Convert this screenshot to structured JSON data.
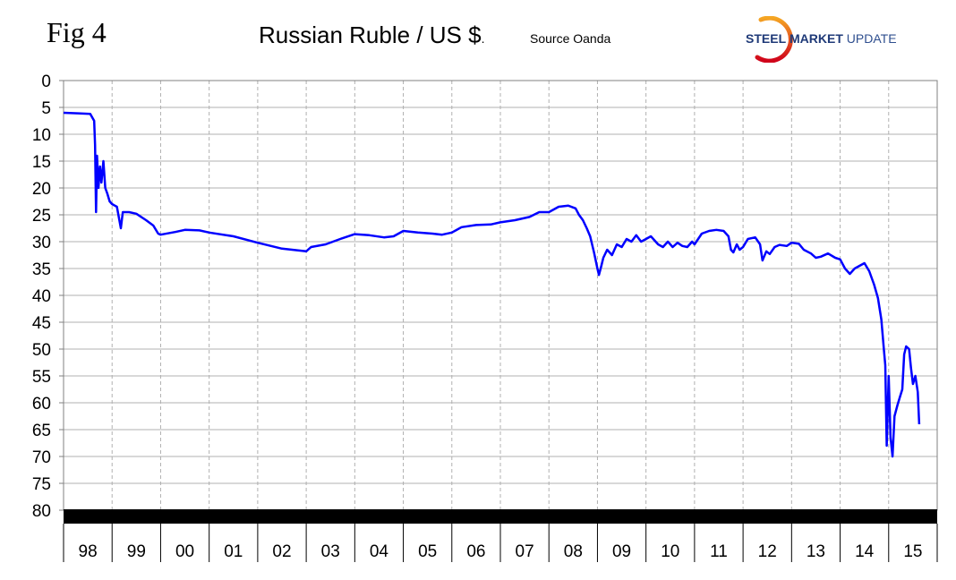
{
  "header": {
    "fig_label": "Fig 4",
    "title": "Russian Ruble / US $",
    "title_suffix": ".",
    "source": "Source Oanda"
  },
  "logo": {
    "word1": "STEEL",
    "word2": "MARKET",
    "word3": "UPDATE",
    "colors": {
      "text": "#1f3a78",
      "arc_start": "#f5a623",
      "arc_end": "#d0021b"
    }
  },
  "colors": {
    "line": "#0000ff",
    "axis_band": "#000000",
    "grid": "#b0b0b0"
  },
  "chart_data": {
    "type": "line",
    "title": "Russian Ruble / US $",
    "xlabel": "",
    "ylabel": "",
    "y_axis_inverted": true,
    "ylim": [
      0,
      80
    ],
    "y_ticks": [
      0,
      5,
      10,
      15,
      20,
      25,
      30,
      35,
      40,
      45,
      50,
      55,
      60,
      65,
      70,
      75,
      80
    ],
    "categories": [
      "98",
      "99",
      "00",
      "01",
      "02",
      "03",
      "04",
      "05",
      "06",
      "07",
      "08",
      "09",
      "10",
      "11",
      "12",
      "13",
      "14",
      "15"
    ],
    "grid": {
      "vertical": "dashed",
      "horizontal": "solid"
    },
    "series": [
      {
        "points": [
          [
            1998.0,
            6.0
          ],
          [
            1998.3,
            6.1
          ],
          [
            1998.55,
            6.2
          ],
          [
            1998.63,
            7.5
          ],
          [
            1998.65,
            12
          ],
          [
            1998.67,
            24.5
          ],
          [
            1998.69,
            14
          ],
          [
            1998.72,
            20
          ],
          [
            1998.75,
            16
          ],
          [
            1998.78,
            19
          ],
          [
            1998.82,
            15
          ],
          [
            1998.86,
            20
          ],
          [
            1998.9,
            21
          ],
          [
            1998.95,
            22.5
          ],
          [
            1999.0,
            23
          ],
          [
            1999.1,
            23.5
          ],
          [
            1999.18,
            27.5
          ],
          [
            1999.22,
            24.5
          ],
          [
            1999.35,
            24.5
          ],
          [
            1999.5,
            24.8
          ],
          [
            1999.7,
            26
          ],
          [
            1999.85,
            27
          ],
          [
            1999.95,
            28.5
          ],
          [
            2000.0,
            28.7
          ],
          [
            2000.3,
            28.2
          ],
          [
            2000.5,
            27.8
          ],
          [
            2000.8,
            27.9
          ],
          [
            2001.0,
            28.3
          ],
          [
            2001.5,
            29.0
          ],
          [
            2002.0,
            30.2
          ],
          [
            2002.5,
            31.3
          ],
          [
            2003.0,
            31.8
          ],
          [
            2003.1,
            31.0
          ],
          [
            2003.4,
            30.5
          ],
          [
            2003.7,
            29.5
          ],
          [
            2004.0,
            28.6
          ],
          [
            2004.3,
            28.8
          ],
          [
            2004.6,
            29.2
          ],
          [
            2004.8,
            29.0
          ],
          [
            2005.0,
            28.0
          ],
          [
            2005.3,
            28.3
          ],
          [
            2005.6,
            28.5
          ],
          [
            2005.8,
            28.7
          ],
          [
            2006.0,
            28.3
          ],
          [
            2006.2,
            27.3
          ],
          [
            2006.5,
            26.9
          ],
          [
            2006.8,
            26.8
          ],
          [
            2007.0,
            26.4
          ],
          [
            2007.3,
            26.0
          ],
          [
            2007.6,
            25.4
          ],
          [
            2007.8,
            24.5
          ],
          [
            2008.0,
            24.5
          ],
          [
            2008.2,
            23.5
          ],
          [
            2008.4,
            23.3
          ],
          [
            2008.55,
            23.8
          ],
          [
            2008.62,
            25.0
          ],
          [
            2008.7,
            26.0
          ],
          [
            2008.78,
            27.5
          ],
          [
            2008.85,
            29.0
          ],
          [
            2008.93,
            32.0
          ],
          [
            2009.0,
            35.0
          ],
          [
            2009.03,
            36.2
          ],
          [
            2009.08,
            34.5
          ],
          [
            2009.12,
            33.0
          ],
          [
            2009.2,
            31.5
          ],
          [
            2009.3,
            32.5
          ],
          [
            2009.4,
            30.5
          ],
          [
            2009.5,
            31.0
          ],
          [
            2009.6,
            29.5
          ],
          [
            2009.7,
            30.0
          ],
          [
            2009.8,
            28.8
          ],
          [
            2009.9,
            30.0
          ],
          [
            2010.0,
            29.5
          ],
          [
            2010.1,
            29.0
          ],
          [
            2010.25,
            30.5
          ],
          [
            2010.35,
            31.0
          ],
          [
            2010.45,
            30.0
          ],
          [
            2010.55,
            31.0
          ],
          [
            2010.65,
            30.2
          ],
          [
            2010.75,
            30.8
          ],
          [
            2010.85,
            31.0
          ],
          [
            2010.95,
            30.0
          ],
          [
            2011.0,
            30.5
          ],
          [
            2011.15,
            28.5
          ],
          [
            2011.3,
            28.0
          ],
          [
            2011.45,
            27.8
          ],
          [
            2011.6,
            28.0
          ],
          [
            2011.7,
            29.0
          ],
          [
            2011.75,
            31.5
          ],
          [
            2011.8,
            32.0
          ],
          [
            2011.87,
            30.5
          ],
          [
            2011.93,
            31.5
          ],
          [
            2012.0,
            31.0
          ],
          [
            2012.1,
            29.5
          ],
          [
            2012.25,
            29.2
          ],
          [
            2012.35,
            30.5
          ],
          [
            2012.4,
            33.5
          ],
          [
            2012.48,
            31.8
          ],
          [
            2012.55,
            32.3
          ],
          [
            2012.65,
            31.0
          ],
          [
            2012.75,
            30.6
          ],
          [
            2012.9,
            30.8
          ],
          [
            2013.0,
            30.2
          ],
          [
            2013.15,
            30.4
          ],
          [
            2013.25,
            31.5
          ],
          [
            2013.4,
            32.2
          ],
          [
            2013.5,
            33.0
          ],
          [
            2013.6,
            32.8
          ],
          [
            2013.75,
            32.2
          ],
          [
            2013.9,
            33.0
          ],
          [
            2014.0,
            33.3
          ],
          [
            2014.1,
            35.0
          ],
          [
            2014.2,
            36.0
          ],
          [
            2014.3,
            35.0
          ],
          [
            2014.4,
            34.5
          ],
          [
            2014.5,
            34.0
          ],
          [
            2014.6,
            35.5
          ],
          [
            2014.7,
            38.0
          ],
          [
            2014.78,
            40.5
          ],
          [
            2014.85,
            44.5
          ],
          [
            2014.9,
            50.0
          ],
          [
            2014.93,
            53.0
          ],
          [
            2014.96,
            68.0
          ],
          [
            2015.0,
            55.0
          ],
          [
            2015.04,
            66.5
          ],
          [
            2015.08,
            70.0
          ],
          [
            2015.12,
            62.5
          ],
          [
            2015.18,
            60.5
          ],
          [
            2015.23,
            59.0
          ],
          [
            2015.28,
            57.5
          ],
          [
            2015.32,
            51.0
          ],
          [
            2015.36,
            49.5
          ],
          [
            2015.42,
            50.0
          ],
          [
            2015.46,
            53.5
          ],
          [
            2015.5,
            56.5
          ],
          [
            2015.55,
            55.0
          ],
          [
            2015.6,
            58.0
          ],
          [
            2015.63,
            64.0
          ]
        ]
      }
    ]
  }
}
